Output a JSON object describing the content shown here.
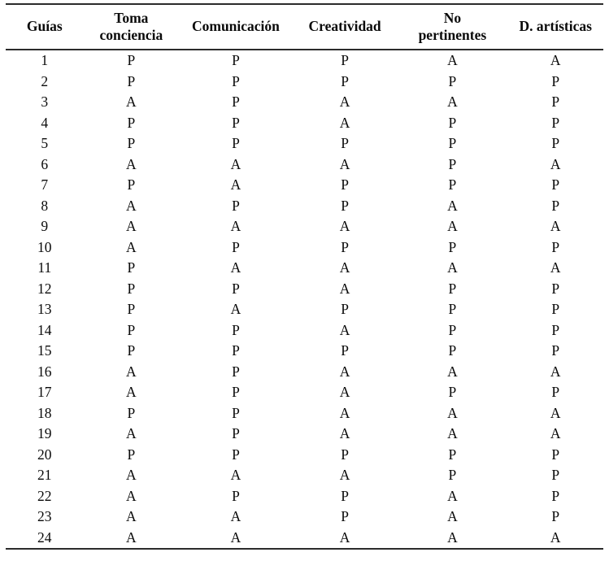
{
  "table": {
    "headers": [
      {
        "label": "Guías"
      },
      {
        "label": "Toma\nconciencia"
      },
      {
        "label": "Comunicación"
      },
      {
        "label": "Creatividad"
      },
      {
        "label": "No\npertinentes"
      },
      {
        "label": "D. artísticas"
      }
    ],
    "rows": [
      {
        "guia": "1",
        "values": [
          "P",
          "P",
          "P",
          "A",
          "A"
        ]
      },
      {
        "guia": "2",
        "values": [
          "P",
          "P",
          "P",
          "P",
          "P"
        ]
      },
      {
        "guia": "3",
        "values": [
          "A",
          "P",
          "A",
          "A",
          "P"
        ]
      },
      {
        "guia": "4",
        "values": [
          "P",
          "P",
          "A",
          "P",
          "P"
        ]
      },
      {
        "guia": "5",
        "values": [
          "P",
          "P",
          "P",
          "P",
          "P"
        ]
      },
      {
        "guia": "6",
        "values": [
          "A",
          "A",
          "A",
          "P",
          "A"
        ]
      },
      {
        "guia": "7",
        "values": [
          "P",
          "A",
          "P",
          "P",
          "P"
        ]
      },
      {
        "guia": "8",
        "values": [
          "A",
          "P",
          "P",
          "A",
          "P"
        ]
      },
      {
        "guia": "9",
        "values": [
          "A",
          "A",
          "A",
          "A",
          "A"
        ]
      },
      {
        "guia": "10",
        "values": [
          "A",
          "P",
          "P",
          "P",
          "P"
        ]
      },
      {
        "guia": "11",
        "values": [
          "P",
          "A",
          "A",
          "A",
          "A"
        ]
      },
      {
        "guia": "12",
        "values": [
          "P",
          "P",
          "A",
          "P",
          "P"
        ]
      },
      {
        "guia": "13",
        "values": [
          "P",
          "A",
          "P",
          "P",
          "P"
        ]
      },
      {
        "guia": "14",
        "values": [
          "P",
          "P",
          "A",
          "P",
          "P"
        ]
      },
      {
        "guia": "15",
        "values": [
          "P",
          "P",
          "P",
          "P",
          "P"
        ]
      },
      {
        "guia": "16",
        "values": [
          "A",
          "P",
          "A",
          "A",
          "A"
        ]
      },
      {
        "guia": "17",
        "values": [
          "A",
          "P",
          "A",
          "P",
          "P"
        ]
      },
      {
        "guia": "18",
        "values": [
          "P",
          "P",
          "A",
          "A",
          "A"
        ]
      },
      {
        "guia": "19",
        "values": [
          "A",
          "P",
          "A",
          "A",
          "A"
        ]
      },
      {
        "guia": "20",
        "values": [
          "P",
          "P",
          "P",
          "P",
          "P"
        ]
      },
      {
        "guia": "21",
        "values": [
          "A",
          "A",
          "A",
          "P",
          "P"
        ]
      },
      {
        "guia": "22",
        "values": [
          "A",
          "P",
          "P",
          "A",
          "P"
        ]
      },
      {
        "guia": "23",
        "values": [
          "A",
          "A",
          "P",
          "A",
          "P"
        ]
      },
      {
        "guia": "24",
        "values": [
          "A",
          "A",
          "A",
          "A",
          "A"
        ]
      }
    ],
    "text_colors": {
      "body": "#0a0a0a",
      "rule": "#2b2b2b",
      "background": "#ffffff"
    }
  }
}
